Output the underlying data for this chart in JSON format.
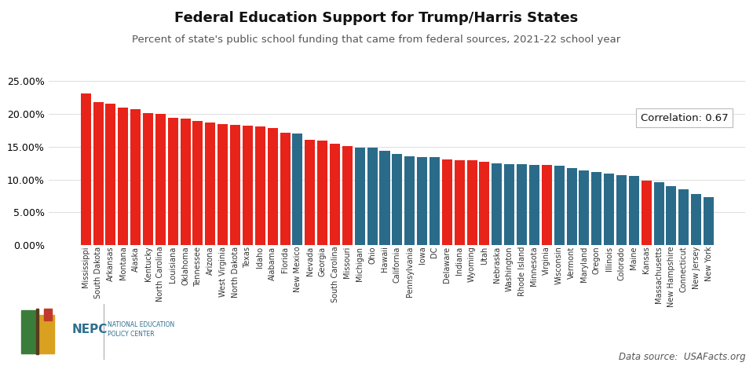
{
  "title": "Federal Education Support for Trump/Harris States",
  "subtitle": "Percent of state's public school funding that came from federal sources, 2021-22 school year",
  "annotation": "Correlation: 0.67",
  "datasource": "Data source:  USAFacts.org",
  "states": [
    "Mississippi",
    "South Dakota",
    "Arkansas",
    "Montana",
    "Alaska",
    "Kentucky",
    "North Carolina",
    "Louisiana",
    "Oklahoma",
    "Tennessee",
    "Arizona",
    "West Virginia",
    "North Dakota",
    "Texas",
    "Idaho",
    "Alabama",
    "Florida",
    "New Mexico",
    "Nevada",
    "Georgia",
    "South Carolina",
    "Missouri",
    "Michigan",
    "Ohio",
    "Hawaii",
    "California",
    "Pennsylvania",
    "Iowa",
    "DC",
    "Delaware",
    "Indiana",
    "Wyoming",
    "Utah",
    "Nebraska",
    "Washington",
    "Rhode Island",
    "Minnesota",
    "Virginia",
    "Wisconsin",
    "Vermont",
    "Maryland",
    "Oregon",
    "Illinois",
    "Colorado",
    "Maine",
    "Kansas",
    "Massachusetts",
    "New Hampshire",
    "Connecticut",
    "New Jersey",
    "New York"
  ],
  "values": [
    23.1,
    21.8,
    21.5,
    21.0,
    20.7,
    20.1,
    20.0,
    19.4,
    19.3,
    18.9,
    18.7,
    18.5,
    18.3,
    18.2,
    18.1,
    17.9,
    17.1,
    17.0,
    16.1,
    15.9,
    15.4,
    15.1,
    14.9,
    14.8,
    14.4,
    13.9,
    13.6,
    13.4,
    13.4,
    13.1,
    13.0,
    12.9,
    12.7,
    12.5,
    12.4,
    12.3,
    12.2,
    12.2,
    12.1,
    11.7,
    11.4,
    11.2,
    10.9,
    10.7,
    10.5,
    9.8,
    9.6,
    9.0,
    8.5,
    7.8,
    7.3
  ],
  "party": [
    "R",
    "R",
    "R",
    "R",
    "R",
    "R",
    "R",
    "R",
    "R",
    "R",
    "R",
    "R",
    "R",
    "R",
    "R",
    "R",
    "R",
    "D",
    "R",
    "R",
    "R",
    "R",
    "D",
    "D",
    "D",
    "D",
    "D",
    "D",
    "D",
    "R",
    "R",
    "R",
    "R",
    "D",
    "D",
    "D",
    "D",
    "R",
    "D",
    "D",
    "D",
    "D",
    "D",
    "D",
    "D",
    "R",
    "D",
    "D",
    "D",
    "D",
    "D"
  ],
  "trump_color": "#E8231A",
  "harris_color": "#2B6B8A",
  "background_color": "#FFFFFF",
  "yticks_pct": [
    0,
    5,
    10,
    15,
    20,
    25
  ]
}
